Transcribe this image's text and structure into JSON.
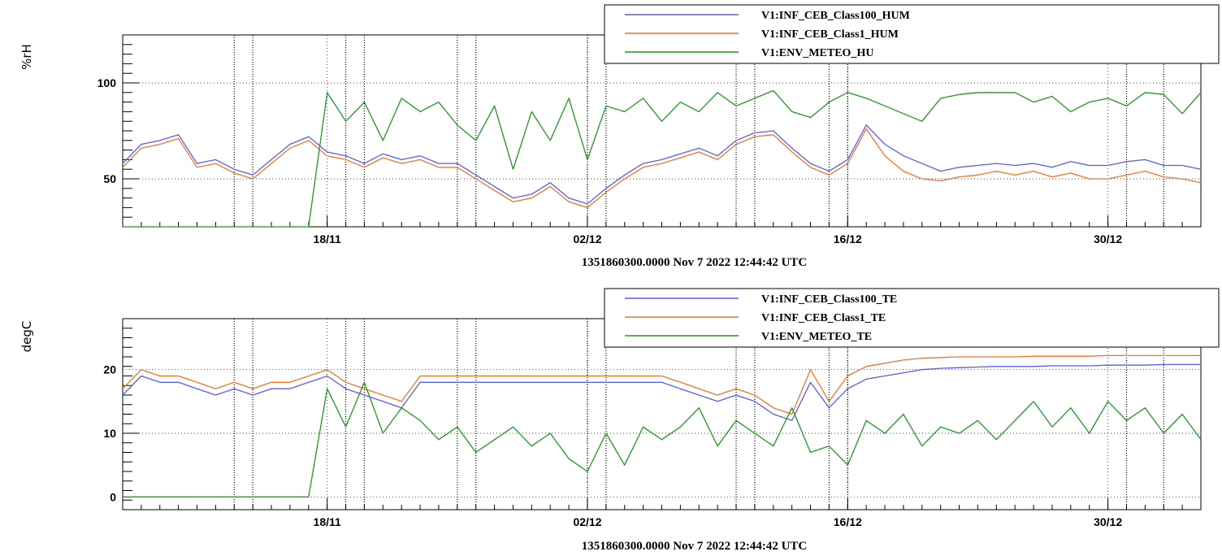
{
  "chart_data": [
    {
      "type": "line",
      "title": "",
      "ylabel": "%rH",
      "xlabel": "1351860300.0000 Nov 7 2022 12:44:42 UTC",
      "x_axis": {
        "type": "date",
        "start": "2022-11-07",
        "end": "2023-01-04",
        "tick_labels": [
          {
            "date": "2022-11-18",
            "label": "18/11"
          },
          {
            "date": "2022-12-02",
            "label": "02/12"
          },
          {
            "date": "2022-12-16",
            "label": "16/12"
          },
          {
            "date": "2022-12-30",
            "label": "30/12"
          }
        ]
      },
      "ylim": [
        25,
        125
      ],
      "yticks": [
        50,
        100
      ],
      "grid": true,
      "legend_position": "top-right",
      "vertical_markers": [
        "2022-11-13",
        "2022-11-14",
        "2022-11-19",
        "2022-11-20",
        "2022-11-25",
        "2022-11-26",
        "2022-12-02",
        "2022-12-03",
        "2022-12-10",
        "2022-12-11",
        "2022-12-15",
        "2022-12-16",
        "2022-12-31",
        "2023-01-02"
      ],
      "series": [
        {
          "name": "V1:INF_CEB_Class100_HUM",
          "color": "#5b5bf0",
          "x": [
            "2022-11-07",
            "2022-11-08",
            "2022-11-09",
            "2022-11-10",
            "2022-11-11",
            "2022-11-12",
            "2022-11-13",
            "2022-11-14",
            "2022-11-15",
            "2022-11-16",
            "2022-11-17",
            "2022-11-18",
            "2022-11-19",
            "2022-11-20",
            "2022-11-21",
            "2022-11-22",
            "2022-11-23",
            "2022-11-24",
            "2022-11-25",
            "2022-11-26",
            "2022-11-27",
            "2022-11-28",
            "2022-11-29",
            "2022-11-30",
            "2022-12-01",
            "2022-12-02",
            "2022-12-03",
            "2022-12-04",
            "2022-12-05",
            "2022-12-06",
            "2022-12-07",
            "2022-12-08",
            "2022-12-09",
            "2022-12-10",
            "2022-12-11",
            "2022-12-12",
            "2022-12-13",
            "2022-12-14",
            "2022-12-15",
            "2022-12-16",
            "2022-12-17",
            "2022-12-18",
            "2022-12-19",
            "2022-12-20",
            "2022-12-21",
            "2022-12-22",
            "2022-12-23",
            "2022-12-24",
            "2022-12-25",
            "2022-12-26",
            "2022-12-27",
            "2022-12-28",
            "2022-12-29",
            "2022-12-30",
            "2022-12-31",
            "2023-01-01",
            "2023-01-02",
            "2023-01-03",
            "2023-01-04"
          ],
          "values": [
            58,
            68,
            70,
            73,
            58,
            60,
            55,
            52,
            60,
            68,
            72,
            64,
            62,
            58,
            63,
            60,
            62,
            58,
            58,
            52,
            46,
            40,
            42,
            48,
            40,
            37,
            45,
            52,
            58,
            60,
            63,
            66,
            62,
            70,
            74,
            75,
            66,
            58,
            54,
            60,
            78,
            68,
            62,
            58,
            54,
            56,
            57,
            58,
            57,
            58,
            56,
            59,
            57,
            57,
            59,
            60,
            57,
            57,
            55
          ]
        },
        {
          "name": "V1:INF_CEB_Class1_HUM",
          "color": "#f0732a",
          "x": [
            "2022-11-07",
            "2022-11-08",
            "2022-11-09",
            "2022-11-10",
            "2022-11-11",
            "2022-11-12",
            "2022-11-13",
            "2022-11-14",
            "2022-11-15",
            "2022-11-16",
            "2022-11-17",
            "2022-11-18",
            "2022-11-19",
            "2022-11-20",
            "2022-11-21",
            "2022-11-22",
            "2022-11-23",
            "2022-11-24",
            "2022-11-25",
            "2022-11-26",
            "2022-11-27",
            "2022-11-28",
            "2022-11-29",
            "2022-11-30",
            "2022-12-01",
            "2022-12-02",
            "2022-12-03",
            "2022-12-04",
            "2022-12-05",
            "2022-12-06",
            "2022-12-07",
            "2022-12-08",
            "2022-12-09",
            "2022-12-10",
            "2022-12-11",
            "2022-12-12",
            "2022-12-13",
            "2022-12-14",
            "2022-12-15",
            "2022-12-16",
            "2022-12-17",
            "2022-12-18",
            "2022-12-19",
            "2022-12-20",
            "2022-12-21",
            "2022-12-22",
            "2022-12-23",
            "2022-12-24",
            "2022-12-25",
            "2022-12-26",
            "2022-12-27",
            "2022-12-28",
            "2022-12-29",
            "2022-12-30",
            "2022-12-31",
            "2023-01-01",
            "2023-01-02",
            "2023-01-03",
            "2023-01-04"
          ],
          "values": [
            56,
            66,
            68,
            71,
            56,
            58,
            53,
            50,
            58,
            66,
            70,
            62,
            60,
            56,
            61,
            58,
            60,
            56,
            56,
            50,
            44,
            38,
            40,
            46,
            38,
            35,
            43,
            50,
            56,
            58,
            61,
            64,
            60,
            68,
            72,
            73,
            64,
            56,
            52,
            58,
            76,
            62,
            54,
            50,
            49,
            51,
            52,
            54,
            52,
            54,
            51,
            53,
            50,
            50,
            52,
            54,
            51,
            50,
            48
          ]
        },
        {
          "name": "V1:ENV_METEO_HU",
          "color": "#1e9a1e",
          "x": [
            "2022-11-07",
            "2022-11-08",
            "2022-11-09",
            "2022-11-10",
            "2022-11-11",
            "2022-11-12",
            "2022-11-13",
            "2022-11-14",
            "2022-11-15",
            "2022-11-16",
            "2022-11-17",
            "2022-11-18",
            "2022-11-19",
            "2022-11-20",
            "2022-11-21",
            "2022-11-22",
            "2022-11-23",
            "2022-11-24",
            "2022-11-25",
            "2022-11-26",
            "2022-11-27",
            "2022-11-28",
            "2022-11-29",
            "2022-11-30",
            "2022-12-01",
            "2022-12-02",
            "2022-12-03",
            "2022-12-04",
            "2022-12-05",
            "2022-12-06",
            "2022-12-07",
            "2022-12-08",
            "2022-12-09",
            "2022-12-10",
            "2022-12-11",
            "2022-12-12",
            "2022-12-13",
            "2022-12-14",
            "2022-12-15",
            "2022-12-16",
            "2022-12-17",
            "2022-12-18",
            "2022-12-19",
            "2022-12-20",
            "2022-12-21",
            "2022-12-22",
            "2022-12-23",
            "2022-12-24",
            "2022-12-25",
            "2022-12-26",
            "2022-12-27",
            "2022-12-28",
            "2022-12-29",
            "2022-12-30",
            "2022-12-31",
            "2023-01-01",
            "2023-01-02",
            "2023-01-03",
            "2023-01-04"
          ],
          "values": [
            25,
            25,
            25,
            25,
            25,
            25,
            25,
            25,
            25,
            25,
            25,
            95,
            80,
            90,
            70,
            92,
            85,
            90,
            78,
            70,
            88,
            55,
            85,
            70,
            92,
            60,
            88,
            85,
            92,
            80,
            90,
            85,
            95,
            88,
            92,
            96,
            85,
            82,
            90,
            95,
            92,
            88,
            84,
            80,
            92,
            94,
            95,
            95,
            95,
            90,
            93,
            85,
            90,
            92,
            88,
            95,
            94,
            84,
            95
          ]
        }
      ]
    },
    {
      "type": "line",
      "title": "",
      "ylabel": "degC",
      "xlabel": "1351860300.0000 Nov 7 2022 12:44:42 UTC",
      "x_axis": {
        "type": "date",
        "start": "2022-11-07",
        "end": "2023-01-04",
        "tick_labels": [
          {
            "date": "2022-11-18",
            "label": "18/11"
          },
          {
            "date": "2022-12-02",
            "label": "02/12"
          },
          {
            "date": "2022-12-16",
            "label": "16/12"
          },
          {
            "date": "2022-12-30",
            "label": "30/12"
          }
        ]
      },
      "ylim": [
        -2,
        28
      ],
      "yticks": [
        0,
        10,
        20
      ],
      "grid": true,
      "legend_position": "top-right",
      "vertical_markers": [
        "2022-11-13",
        "2022-11-14",
        "2022-11-19",
        "2022-11-20",
        "2022-11-25",
        "2022-11-26",
        "2022-12-02",
        "2022-12-03",
        "2022-12-10",
        "2022-12-11",
        "2022-12-15",
        "2022-12-16",
        "2022-12-31",
        "2023-01-02"
      ],
      "series": [
        {
          "name": "V1:INF_CEB_Class100_TE",
          "color": "#5b5bf0",
          "x": [
            "2022-11-07",
            "2022-11-08",
            "2022-11-09",
            "2022-11-10",
            "2022-11-11",
            "2022-11-12",
            "2022-11-13",
            "2022-11-14",
            "2022-11-15",
            "2022-11-16",
            "2022-11-17",
            "2022-11-18",
            "2022-11-19",
            "2022-11-20",
            "2022-11-21",
            "2022-11-22",
            "2022-11-23",
            "2022-11-24",
            "2022-11-25",
            "2022-11-26",
            "2022-11-27",
            "2022-11-28",
            "2022-11-29",
            "2022-11-30",
            "2022-12-01",
            "2022-12-02",
            "2022-12-03",
            "2022-12-04",
            "2022-12-05",
            "2022-12-06",
            "2022-12-07",
            "2022-12-08",
            "2022-12-09",
            "2022-12-10",
            "2022-12-11",
            "2022-12-12",
            "2022-12-13",
            "2022-12-14",
            "2022-12-15",
            "2022-12-16",
            "2022-12-17",
            "2022-12-18",
            "2022-12-19",
            "2022-12-20",
            "2022-12-21",
            "2022-12-22",
            "2022-12-23",
            "2022-12-24",
            "2022-12-25",
            "2022-12-26",
            "2022-12-27",
            "2022-12-28",
            "2022-12-29",
            "2022-12-30",
            "2022-12-31",
            "2023-01-01",
            "2023-01-02",
            "2023-01-03",
            "2023-01-04"
          ],
          "values": [
            16,
            19,
            18,
            18,
            17,
            16,
            17,
            16,
            17,
            17,
            18,
            19,
            17,
            16,
            15,
            14,
            18,
            18,
            18,
            18,
            18,
            18,
            18,
            18,
            18,
            18,
            18,
            18,
            18,
            18,
            17,
            16,
            15,
            16,
            15,
            13,
            12,
            18,
            14,
            17,
            18.5,
            19,
            19.5,
            20,
            20.2,
            20.3,
            20.4,
            20.5,
            20.5,
            20.5,
            20.6,
            20.6,
            20.6,
            20.7,
            20.7,
            20.7,
            20.8,
            20.8,
            20.8
          ]
        },
        {
          "name": "V1:INF_CEB_Class1_TE",
          "color": "#f0732a",
          "x": [
            "2022-11-07",
            "2022-11-08",
            "2022-11-09",
            "2022-11-10",
            "2022-11-11",
            "2022-11-12",
            "2022-11-13",
            "2022-11-14",
            "2022-11-15",
            "2022-11-16",
            "2022-11-17",
            "2022-11-18",
            "2022-11-19",
            "2022-11-20",
            "2022-11-21",
            "2022-11-22",
            "2022-11-23",
            "2022-11-24",
            "2022-11-25",
            "2022-11-26",
            "2022-11-27",
            "2022-11-28",
            "2022-11-29",
            "2022-11-30",
            "2022-12-01",
            "2022-12-02",
            "2022-12-03",
            "2022-12-04",
            "2022-12-05",
            "2022-12-06",
            "2022-12-07",
            "2022-12-08",
            "2022-12-09",
            "2022-12-10",
            "2022-12-11",
            "2022-12-12",
            "2022-12-13",
            "2022-12-14",
            "2022-12-15",
            "2022-12-16",
            "2022-12-17",
            "2022-12-18",
            "2022-12-19",
            "2022-12-20",
            "2022-12-21",
            "2022-12-22",
            "2022-12-23",
            "2022-12-24",
            "2022-12-25",
            "2022-12-26",
            "2022-12-27",
            "2022-12-28",
            "2022-12-29",
            "2022-12-30",
            "2022-12-31",
            "2023-01-01",
            "2023-01-02",
            "2023-01-03",
            "2023-01-04"
          ],
          "values": [
            17,
            20,
            19,
            19,
            18,
            17,
            18,
            17,
            18,
            18,
            19,
            20,
            18,
            17,
            16,
            15,
            19,
            19,
            19,
            19,
            19,
            19,
            19,
            19,
            19,
            19,
            19,
            19,
            19,
            19,
            18,
            17,
            16,
            17,
            16,
            14,
            13,
            20,
            15,
            19,
            20.5,
            21,
            21.5,
            21.8,
            21.9,
            22,
            22,
            22,
            22,
            22.1,
            22.1,
            22.1,
            22.1,
            22.2,
            22.2,
            22.2,
            22.2,
            22.2,
            22.2
          ]
        },
        {
          "name": "V1:ENV_METEO_TE",
          "color": "#1e9a1e",
          "x": [
            "2022-11-07",
            "2022-11-08",
            "2022-11-09",
            "2022-11-10",
            "2022-11-11",
            "2022-11-12",
            "2022-11-13",
            "2022-11-14",
            "2022-11-15",
            "2022-11-16",
            "2022-11-17",
            "2022-11-18",
            "2022-11-19",
            "2022-11-20",
            "2022-11-21",
            "2022-11-22",
            "2022-11-23",
            "2022-11-24",
            "2022-11-25",
            "2022-11-26",
            "2022-11-27",
            "2022-11-28",
            "2022-11-29",
            "2022-11-30",
            "2022-12-01",
            "2022-12-02",
            "2022-12-03",
            "2022-12-04",
            "2022-12-05",
            "2022-12-06",
            "2022-12-07",
            "2022-12-08",
            "2022-12-09",
            "2022-12-10",
            "2022-12-11",
            "2022-12-12",
            "2022-12-13",
            "2022-12-14",
            "2022-12-15",
            "2022-12-16",
            "2022-12-17",
            "2022-12-18",
            "2022-12-19",
            "2022-12-20",
            "2022-12-21",
            "2022-12-22",
            "2022-12-23",
            "2022-12-24",
            "2022-12-25",
            "2022-12-26",
            "2022-12-27",
            "2022-12-28",
            "2022-12-29",
            "2022-12-30",
            "2022-12-31",
            "2023-01-01",
            "2023-01-02",
            "2023-01-03",
            "2023-01-04"
          ],
          "values": [
            0,
            0,
            0,
            0,
            0,
            0,
            0,
            0,
            0,
            0,
            0,
            17,
            11,
            18,
            10,
            14,
            12,
            9,
            11,
            7,
            9,
            11,
            8,
            10,
            6,
            4,
            10,
            5,
            11,
            9,
            11,
            14,
            8,
            12,
            10,
            8,
            14,
            7,
            8,
            5,
            12,
            10,
            13,
            8,
            11,
            10,
            12,
            9,
            12,
            15,
            11,
            14,
            10,
            15,
            12,
            14,
            10,
            13,
            9
          ]
        }
      ]
    }
  ]
}
